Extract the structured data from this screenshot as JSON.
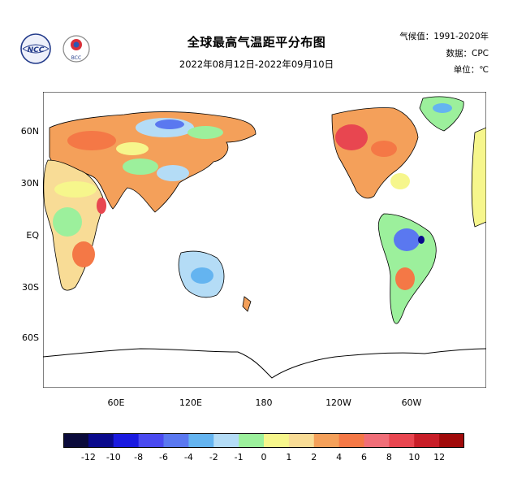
{
  "header": {
    "title": "全球最高气温距平分布图",
    "subtitle": "2022年08月12日-2022年09月10日",
    "climate_period": "气候值：1991-2020年",
    "data_source": "数据：CPC",
    "unit": "单位：℃",
    "logo_left_text": "NCC",
    "logo_right_text": "BCC"
  },
  "map": {
    "lat_labels": [
      "60N",
      "30N",
      "EQ",
      "30S",
      "60S"
    ],
    "lon_labels": [
      "60E",
      "120E",
      "180",
      "120W",
      "60W"
    ]
  },
  "legend": {
    "colors": [
      "#0b0b3b",
      "#0a0a8c",
      "#1a1ae0",
      "#4a4af0",
      "#5a78f0",
      "#64b4f0",
      "#b4dcf6",
      "#9cf09c",
      "#f6f68c",
      "#f8dc96",
      "#f4a05a",
      "#f47846",
      "#f06e78",
      "#e84650",
      "#c81e28",
      "#a00a0a"
    ],
    "ticks": [
      "-12",
      "-10",
      "-8",
      "-6",
      "-4",
      "-2",
      "-1",
      "0",
      "1",
      "2",
      "4",
      "6",
      "8",
      "10",
      "12"
    ]
  }
}
